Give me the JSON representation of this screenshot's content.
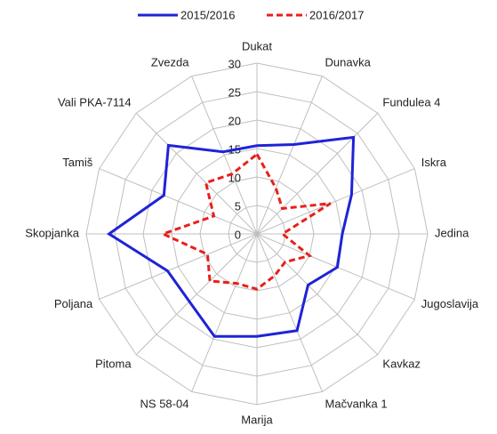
{
  "chart_data": {
    "type": "radar",
    "categories": [
      "Dukat",
      "Dunavka",
      "Fundulea 4",
      "Iskra",
      "Jedina",
      "Jugoslavija",
      "Kavkaz",
      "Mačvanka 1",
      "Marija",
      "NS 58-04",
      "Pitoma",
      "Poljana",
      "Skopjanka",
      "Tamiš",
      "Vali PKA-7114",
      "Zvezda"
    ],
    "series": [
      {
        "name": "2015/2016",
        "color": "#1f23d6",
        "dash": false,
        "values": [
          15.5,
          17,
          24,
          18,
          15,
          15.3,
          12.7,
          18.4,
          18,
          19.5,
          16.8,
          17,
          26,
          17.7,
          22,
          15.6
        ]
      },
      {
        "name": "2016/2017",
        "color": "#e8201c",
        "dash": true,
        "values": [
          14,
          8.7,
          6.3,
          14,
          4.5,
          10,
          7,
          8,
          9.7,
          9.4,
          11.7,
          9.4,
          16.5,
          8.2,
          12.7,
          11.4
        ]
      }
    ],
    "ylim": [
      0,
      30
    ],
    "yticks": [
      0,
      5,
      10,
      15,
      20,
      25,
      30
    ],
    "grid": true,
    "legend": "top"
  }
}
